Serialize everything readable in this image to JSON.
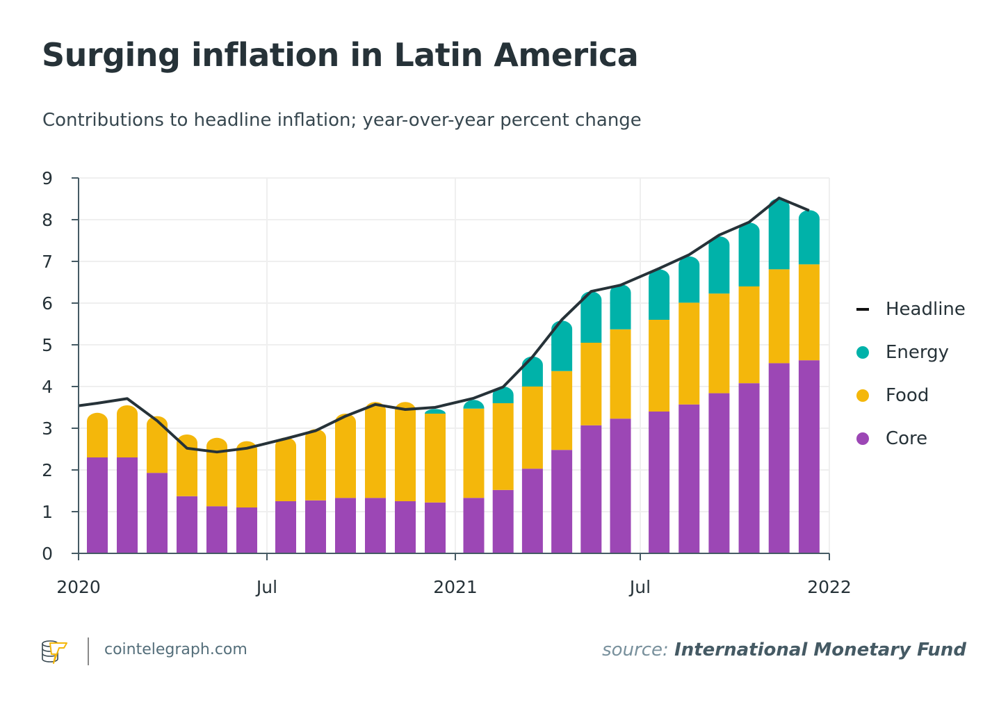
{
  "header": {
    "title": "Surging inflation in Latin America",
    "subtitle": "Contributions to headline inflation; year-over-year percent change"
  },
  "footer": {
    "site": "cointelegraph.com",
    "source_label": "source:",
    "source_name": "International Monetary Fund",
    "logo_icon": "cointelegraph-coins-bolt-icon"
  },
  "colors": {
    "core": "#9c47b5",
    "food": "#f4b70b",
    "energy": "#00b2a9",
    "headline": "#263238",
    "grid": "#efefef",
    "axis": "#455a64"
  },
  "chart_data": {
    "type": "bar",
    "stacked": true,
    "title": "Surging inflation in Latin America",
    "subtitle": "Contributions to headline inflation; year-over-year percent change",
    "xlabel": "",
    "ylabel": "",
    "ylim": [
      0,
      9
    ],
    "yticks": [
      0,
      1,
      2,
      3,
      4,
      5,
      6,
      7,
      8,
      9
    ],
    "xticks": [
      "2020",
      "Jul",
      "2021",
      "Jul",
      "2022"
    ],
    "grid": true,
    "legend_position": "right",
    "categories": [
      "2020-01",
      "2020-02",
      "2020-03",
      "2020-04",
      "2020-05",
      "2020-06",
      "2020-07",
      "2020-08",
      "2020-09",
      "2020-10",
      "2020-11",
      "2020-12",
      "2021-01",
      "2021-02",
      "2021-03",
      "2021-04",
      "2021-05",
      "2021-06",
      "2021-07",
      "2021-08",
      "2021-09",
      "2021-10",
      "2021-11",
      "2021-12"
    ],
    "series": [
      {
        "name": "Core",
        "type": "bar",
        "values": [
          2.3,
          2.3,
          1.93,
          1.37,
          1.13,
          1.1,
          1.25,
          1.27,
          1.33,
          1.33,
          1.25,
          1.22,
          1.33,
          1.52,
          2.03,
          2.48,
          3.07,
          3.23,
          3.4,
          3.57,
          3.84,
          4.08,
          4.56,
          4.63
        ]
      },
      {
        "name": "Food",
        "type": "bar",
        "values": [
          1.07,
          1.25,
          1.36,
          1.48,
          1.64,
          1.59,
          1.53,
          1.71,
          2.02,
          2.3,
          2.38,
          2.13,
          2.14,
          2.08,
          1.97,
          1.89,
          1.98,
          2.14,
          2.2,
          2.44,
          2.39,
          2.32,
          2.25,
          2.3
        ]
      },
      {
        "name": "Energy",
        "type": "bar",
        "values": [
          0,
          0,
          0,
          0,
          0,
          0,
          0,
          0,
          0,
          0,
          0,
          0.11,
          0.21,
          0.4,
          0.72,
          1.21,
          1.23,
          1.08,
          1.21,
          1.11,
          1.37,
          1.53,
          1.7,
          1.3
        ]
      },
      {
        "name": "Headline",
        "type": "line",
        "start_value": 3.54,
        "values": [
          3.6,
          3.71,
          3.18,
          2.52,
          2.43,
          2.52,
          2.75,
          2.94,
          3.29,
          3.57,
          3.45,
          3.5,
          3.72,
          3.99,
          4.71,
          5.6,
          6.28,
          6.43,
          6.83,
          7.16,
          7.63,
          7.94,
          8.52,
          8.22
        ]
      }
    ],
    "legend": [
      "Headline",
      "Energy",
      "Food",
      "Core"
    ]
  }
}
